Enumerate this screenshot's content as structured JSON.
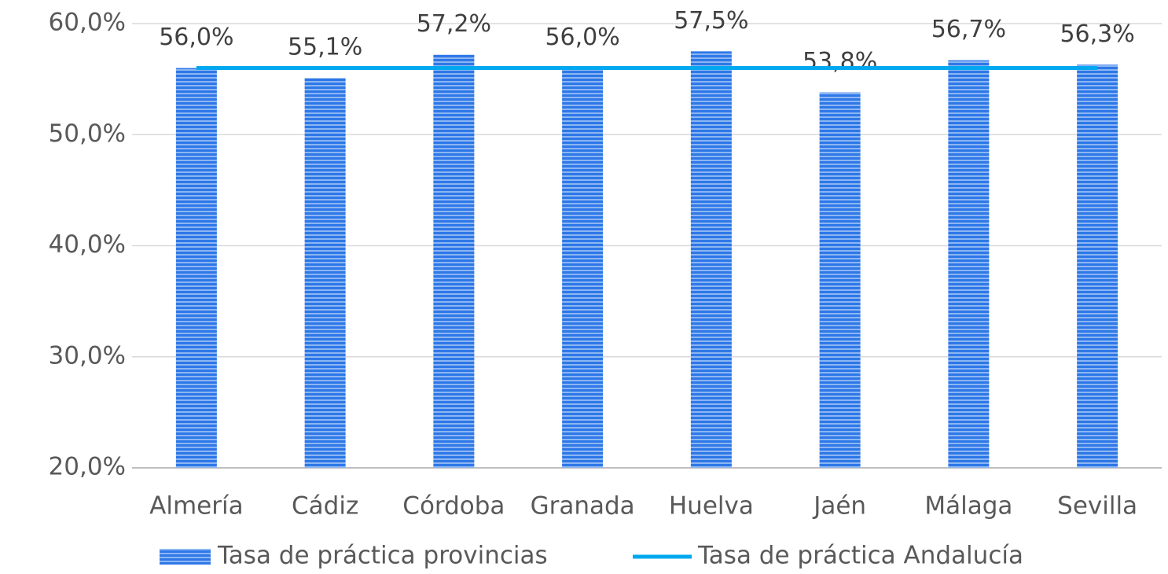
{
  "chart_data": {
    "type": "bar",
    "categories": [
      "Almería",
      "Cádiz",
      "Córdoba",
      "Granada",
      "Huelva",
      "Jaén",
      "Málaga",
      "Sevilla"
    ],
    "series": [
      {
        "name": "Tasa de práctica provincias",
        "type": "bar",
        "color": "#2e78e8",
        "values": [
          56.0,
          55.1,
          57.2,
          56.0,
          57.5,
          53.8,
          56.7,
          56.3
        ],
        "value_labels": [
          "56,0%",
          "55,1%",
          "57,2%",
          "56,0%",
          "57,5%",
          "53,8%",
          "56,7%",
          "56,3%"
        ]
      },
      {
        "name": "Tasa de práctica Andalucía",
        "type": "line",
        "color": "#00a8f0",
        "values": [
          56.0,
          56.0,
          56.0,
          56.0,
          56.0,
          56.0,
          56.0,
          56.0
        ]
      }
    ],
    "ylim": [
      20,
      60
    ],
    "yticks": [
      {
        "value": 20,
        "label": "20,0%"
      },
      {
        "value": 30,
        "label": "30,0%"
      },
      {
        "value": 40,
        "label": "40,0%"
      },
      {
        "value": 50,
        "label": "50,0%"
      },
      {
        "value": 60,
        "label": "60,0%"
      }
    ],
    "grid": true,
    "legend": "bottom"
  }
}
